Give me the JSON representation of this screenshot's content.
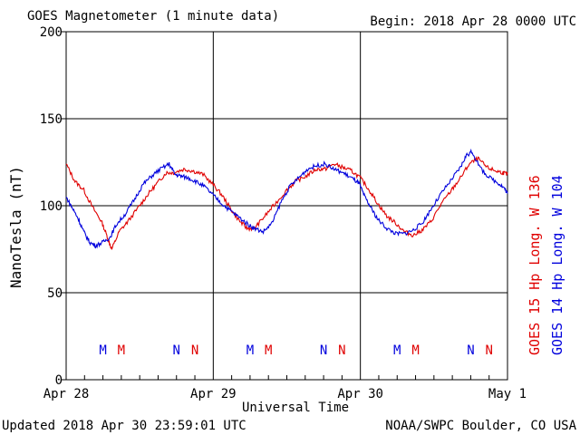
{
  "header": {
    "title": "GOES Magnetometer (1 minute data)",
    "begin": "Begin:  2018 Apr 28 0000 UTC"
  },
  "footer": {
    "updated": "Updated 2018 Apr 30 23:59:01 UTC",
    "credit": "NOAA/SWPC Boulder, CO USA"
  },
  "colors": {
    "goes15": "#e00000",
    "goes14": "#0000dd",
    "grid": "#000000"
  },
  "chart_data": {
    "type": "line",
    "ylabel": "NanoTesla (nT)",
    "xlabel": "Universal Time",
    "ylim": [
      0,
      200
    ],
    "yticks": [
      0,
      50,
      100,
      150,
      200
    ],
    "ytick_labels": [
      "0",
      "50",
      "100",
      "150",
      "200"
    ],
    "x_unit": "days since Apr 28 0000 UTC",
    "xlim": [
      0,
      3
    ],
    "xticks": [
      0,
      1,
      2,
      3
    ],
    "xtick_labels": [
      "Apr 28",
      "Apr 29",
      "Apr 30",
      "May 1"
    ],
    "grid": true,
    "legend": [
      {
        "label": "GOES 15 Hp  Long. W 136",
        "color": "#e00000"
      },
      {
        "label": "GOES 14 Hp  Long. W 104",
        "color": "#0000dd"
      }
    ],
    "markers": [
      {
        "text": "M",
        "x": 0.25,
        "series": "GOES 14"
      },
      {
        "text": "M",
        "x": 0.375,
        "series": "GOES 15"
      },
      {
        "text": "N",
        "x": 0.75,
        "series": "GOES 14"
      },
      {
        "text": "N",
        "x": 0.875,
        "series": "GOES 15"
      },
      {
        "text": "M",
        "x": 1.25,
        "series": "GOES 14"
      },
      {
        "text": "M",
        "x": 1.375,
        "series": "GOES 15"
      },
      {
        "text": "N",
        "x": 1.75,
        "series": "GOES 14"
      },
      {
        "text": "N",
        "x": 1.875,
        "series": "GOES 15"
      },
      {
        "text": "M",
        "x": 2.25,
        "series": "GOES 14"
      },
      {
        "text": "M",
        "x": 2.375,
        "series": "GOES 15"
      },
      {
        "text": "N",
        "x": 2.75,
        "series": "GOES 14"
      },
      {
        "text": "N",
        "x": 2.875,
        "series": "GOES 15"
      }
    ],
    "series": [
      {
        "name": "GOES 15",
        "x": [
          0,
          0.06,
          0.12,
          0.18,
          0.24,
          0.28,
          0.31,
          0.36,
          0.42,
          0.5,
          0.56,
          0.62,
          0.68,
          0.73,
          0.8,
          0.86,
          0.93,
          1.0,
          1.06,
          1.12,
          1.18,
          1.23,
          1.28,
          1.35,
          1.42,
          1.5,
          1.56,
          1.63,
          1.7,
          1.76,
          1.82,
          1.88,
          1.94,
          2.0,
          2.06,
          2.12,
          2.18,
          2.24,
          2.3,
          2.36,
          2.42,
          2.48,
          2.55,
          2.62,
          2.68,
          2.74,
          2.8,
          2.86,
          2.92,
          2.97,
          3.0
        ],
        "values": [
          124,
          114,
          109,
          99,
          91,
          82,
          75,
          85,
          91,
          100,
          107,
          113,
          119,
          119,
          121,
          120,
          118,
          112,
          106,
          98,
          91,
          87,
          87,
          94,
          101,
          109,
          114,
          117,
          121,
          121,
          124,
          122,
          120,
          116,
          109,
          101,
          94,
          90,
          85,
          83,
          86,
          91,
          101,
          109,
          116,
          124,
          127,
          122,
          120,
          119,
          118
        ]
      },
      {
        "name": "GOES 14",
        "x": [
          0,
          0.04,
          0.08,
          0.12,
          0.16,
          0.2,
          0.25,
          0.3,
          0.34,
          0.4,
          0.46,
          0.52,
          0.58,
          0.64,
          0.7,
          0.74,
          0.78,
          0.83,
          0.88,
          0.94,
          1.0,
          1.06,
          1.12,
          1.18,
          1.24,
          1.28,
          1.34,
          1.4,
          1.46,
          1.52,
          1.58,
          1.64,
          1.7,
          1.76,
          1.82,
          1.88,
          1.94,
          1.99,
          2.03,
          2.07,
          2.12,
          2.18,
          2.24,
          2.3,
          2.36,
          2.42,
          2.48,
          2.55,
          2.62,
          2.68,
          2.72,
          2.76,
          2.82,
          2.88,
          2.94,
          2.98,
          3.0
        ],
        "values": [
          105,
          99,
          93,
          85,
          79,
          77,
          79,
          82,
          89,
          95,
          103,
          112,
          117,
          121,
          124,
          118,
          117,
          116,
          114,
          111,
          106,
          101,
          97,
          93,
          89,
          87,
          85,
          90,
          102,
          111,
          116,
          121,
          123,
          124,
          121,
          119,
          116,
          113,
          105,
          99,
          92,
          87,
          84,
          84,
          86,
          90,
          98,
          107,
          115,
          122,
          129,
          131,
          121,
          116,
          113,
          110,
          107
        ]
      }
    ]
  }
}
